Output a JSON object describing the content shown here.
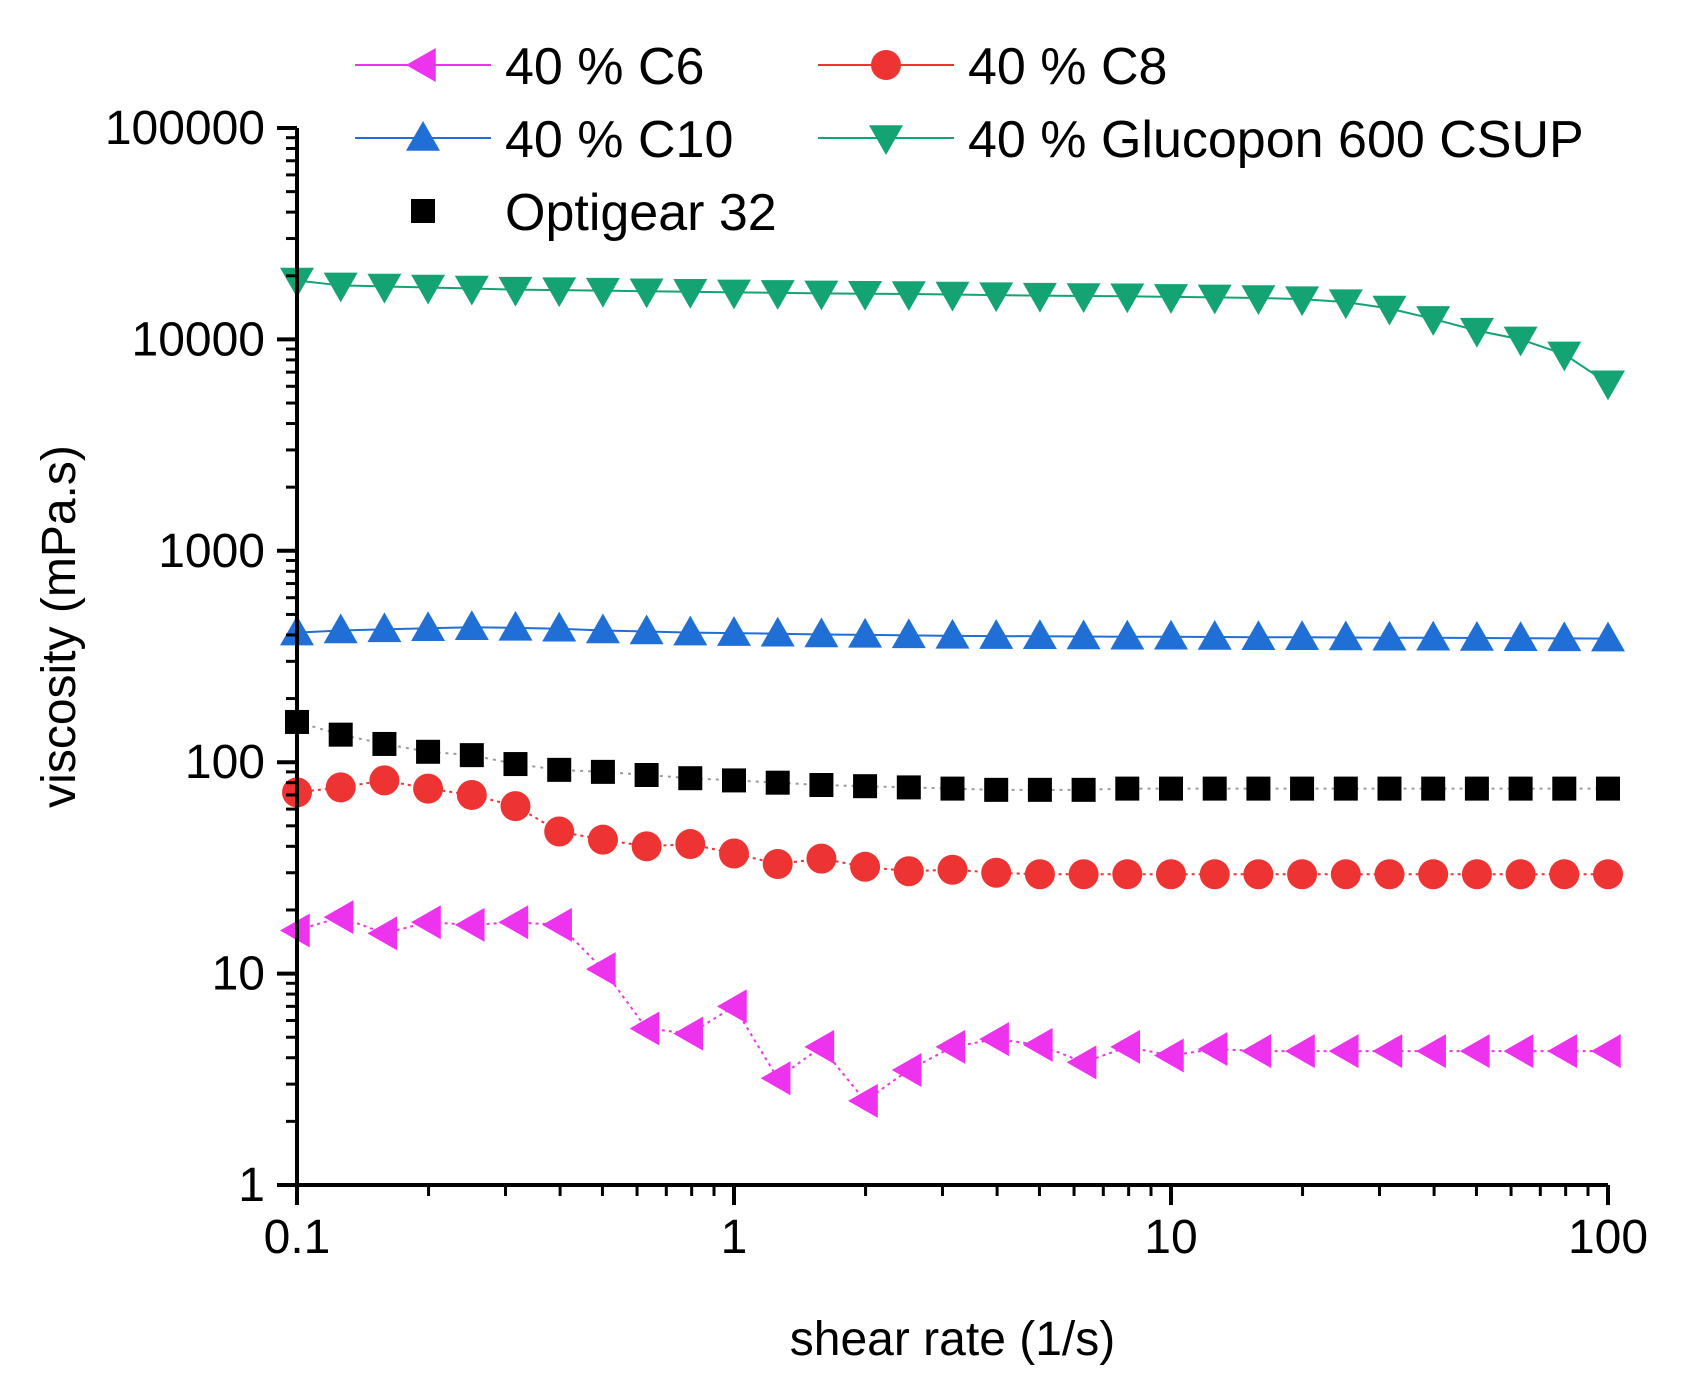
{
  "chart_data": {
    "type": "scatter",
    "title": "",
    "xlabel": "shear rate (1/s)",
    "ylabel": "viscosity (mPa.s)",
    "xscale": "log",
    "yscale": "log",
    "xlim": [
      0.1,
      100
    ],
    "ylim": [
      1,
      100000
    ],
    "x_ticks": [
      0.1,
      1,
      10,
      100
    ],
    "x_tick_labels": [
      "0.1",
      "1",
      "10",
      "100"
    ],
    "y_ticks": [
      1,
      10,
      100,
      1000,
      10000,
      100000
    ],
    "y_tick_labels": [
      "1",
      "10",
      "100",
      "1000",
      "10000",
      "100000"
    ],
    "legend_position": "top",
    "series": [
      {
        "name": "40 % C6",
        "color": "#ee33ee",
        "marker": "triangle-left",
        "line": "dotted",
        "x": [
          0.1,
          0.1259,
          0.1585,
          0.1995,
          0.2512,
          0.3162,
          0.3981,
          0.5012,
          0.631,
          0.7943,
          1.0,
          1.259,
          1.585,
          1.995,
          2.512,
          3.162,
          3.981,
          5.012,
          6.31,
          7.943,
          10.0,
          12.59,
          15.85,
          19.95,
          25.12,
          31.62,
          39.81,
          50.12,
          63.1,
          79.43,
          100.0
        ],
        "values": [
          16,
          18.5,
          15.5,
          17.5,
          17,
          17.5,
          17,
          10.5,
          5.5,
          5.2,
          7,
          3.2,
          4.5,
          2.5,
          3.5,
          4.5,
          4.9,
          4.6,
          3.8,
          4.5,
          4.1,
          4.4,
          4.3,
          4.3,
          4.3,
          4.3,
          4.3,
          4.3,
          4.3,
          4.3,
          4.3
        ]
      },
      {
        "name": "40 % C8",
        "color": "#ee3333",
        "marker": "circle",
        "line": "dotted",
        "x": [
          0.1,
          0.1259,
          0.1585,
          0.1995,
          0.2512,
          0.3162,
          0.3981,
          0.5012,
          0.631,
          0.7943,
          1.0,
          1.259,
          1.585,
          1.995,
          2.512,
          3.162,
          3.981,
          5.012,
          6.31,
          7.943,
          10.0,
          12.59,
          15.85,
          19.95,
          25.12,
          31.62,
          39.81,
          50.12,
          63.1,
          79.43,
          100.0
        ],
        "values": [
          72,
          76,
          82,
          75,
          70,
          62,
          47,
          43,
          40,
          41,
          37,
          33,
          35,
          32,
          30.5,
          31,
          30,
          29.5,
          29.5,
          29.5,
          29.5,
          29.5,
          29.5,
          29.5,
          29.5,
          29.5,
          29.5,
          29.5,
          29.5,
          29.5,
          29.5
        ]
      },
      {
        "name": "40 % C10",
        "color": "#1f6fd6",
        "marker": "triangle-up",
        "line": "solid",
        "x": [
          0.1,
          0.1259,
          0.1585,
          0.1995,
          0.2512,
          0.3162,
          0.3981,
          0.5012,
          0.631,
          0.7943,
          1.0,
          1.259,
          1.585,
          1.995,
          2.512,
          3.162,
          3.981,
          5.012,
          6.31,
          7.943,
          10.0,
          12.59,
          15.85,
          19.95,
          25.12,
          31.62,
          39.81,
          50.12,
          63.1,
          79.43,
          100.0
        ],
        "values": [
          410,
          420,
          425,
          430,
          435,
          432,
          428,
          420,
          415,
          410,
          408,
          405,
          402,
          400,
          398,
          396,
          395,
          394,
          393,
          392,
          392,
          391,
          390,
          390,
          389,
          388,
          388,
          387,
          386,
          385,
          384
        ]
      },
      {
        "name": "40 % Glucopon 600 CSUP",
        "color": "#14a373",
        "marker": "triangle-down",
        "line": "solid",
        "x": [
          0.1,
          0.1259,
          0.1585,
          0.1995,
          0.2512,
          0.3162,
          0.3981,
          0.5012,
          0.631,
          0.7943,
          1.0,
          1.259,
          1.585,
          1.995,
          2.512,
          3.162,
          3.981,
          5.012,
          6.31,
          7.943,
          10.0,
          12.59,
          15.85,
          19.95,
          25.12,
          31.62,
          39.81,
          50.12,
          63.1,
          79.43,
          100.0
        ],
        "values": [
          19000,
          18000,
          17800,
          17600,
          17400,
          17200,
          17100,
          17000,
          16900,
          16800,
          16700,
          16600,
          16500,
          16450,
          16400,
          16300,
          16200,
          16100,
          16050,
          16000,
          15900,
          15800,
          15700,
          15500,
          15000,
          14000,
          12500,
          11000,
          10000,
          8500,
          6200
        ]
      },
      {
        "name": "Optigear 32",
        "color": "#000000",
        "marker": "square",
        "line": "dotted-gray",
        "x": [
          0.1,
          0.1259,
          0.1585,
          0.1995,
          0.2512,
          0.3162,
          0.3981,
          0.5012,
          0.631,
          0.7943,
          1.0,
          1.259,
          1.585,
          1.995,
          2.512,
          3.162,
          3.981,
          5.012,
          6.31,
          7.943,
          10.0,
          12.59,
          15.85,
          19.95,
          25.12,
          31.62,
          39.81,
          50.12,
          63.1,
          79.43,
          100.0
        ],
        "values": [
          155,
          135,
          122,
          112,
          108,
          98,
          92,
          90,
          87,
          84,
          82,
          80,
          78,
          77,
          76,
          75,
          74,
          74,
          74,
          75,
          75,
          75,
          75,
          75,
          75,
          75,
          75,
          75,
          75,
          75,
          75
        ]
      }
    ]
  }
}
